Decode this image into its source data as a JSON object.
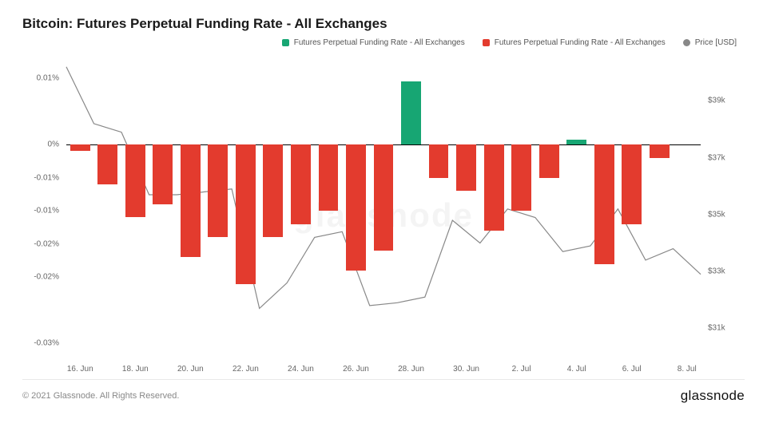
{
  "title": "Bitcoin: Futures Perpetual Funding Rate - All Exchanges",
  "legend": {
    "pos": {
      "label": "Futures Perpetual Funding Rate - All Exchanges",
      "color": "#17a673"
    },
    "neg": {
      "label": "Futures Perpetual Funding Rate - All Exchanges",
      "color": "#e33b2e"
    },
    "price": {
      "label": "Price [USD]",
      "color": "#888888"
    }
  },
  "footer": {
    "copyright": "© 2021 Glassnode. All Rights Reserved.",
    "brand": "glassnode"
  },
  "watermark": "glassnode",
  "left_axis": {
    "min": -0.032,
    "max": 0.013,
    "ticks": [
      {
        "v": 0.01,
        "label": "0.01%"
      },
      {
        "v": 0.0,
        "label": "0%"
      },
      {
        "v": -0.005,
        "label": "-0.01%"
      },
      {
        "v": -0.01,
        "label": "-0.01%"
      },
      {
        "v": -0.015,
        "label": "-0.02%"
      },
      {
        "v": -0.02,
        "label": "-0.02%"
      },
      {
        "v": -0.03,
        "label": "-0.03%"
      }
    ]
  },
  "right_axis": {
    "min": 30000,
    "max": 40500,
    "ticks": [
      {
        "v": 39000,
        "label": "$39k"
      },
      {
        "v": 37000,
        "label": "$37k"
      },
      {
        "v": 35000,
        "label": "$35k"
      },
      {
        "v": 33000,
        "label": "$33k"
      },
      {
        "v": 31000,
        "label": "$31k"
      }
    ]
  },
  "x_axis": {
    "labels": [
      {
        "i": 0,
        "label": "16. Jun"
      },
      {
        "i": 2,
        "label": "18. Jun"
      },
      {
        "i": 4,
        "label": "20. Jun"
      },
      {
        "i": 6,
        "label": "22. Jun"
      },
      {
        "i": 8,
        "label": "24. Jun"
      },
      {
        "i": 10,
        "label": "26. Jun"
      },
      {
        "i": 12,
        "label": "28. Jun"
      },
      {
        "i": 14,
        "label": "30. Jun"
      },
      {
        "i": 16,
        "label": "2. Jul"
      },
      {
        "i": 18,
        "label": "4. Jul"
      },
      {
        "i": 20,
        "label": "6. Jul"
      },
      {
        "i": 22,
        "label": "8. Jul"
      }
    ]
  },
  "bars": {
    "width_frac": 0.72,
    "values": [
      -0.001,
      -0.006,
      -0.011,
      -0.009,
      -0.017,
      -0.014,
      -0.021,
      -0.014,
      -0.012,
      -0.01,
      -0.019,
      -0.016,
      0.0095,
      -0.005,
      -0.007,
      -0.013,
      -0.01,
      -0.005,
      0.0007,
      -0.018,
      -0.012,
      -0.002,
      0.0
    ]
  },
  "price": {
    "values": [
      40200,
      38200,
      37900,
      35700,
      35700,
      35800,
      35900,
      31700,
      32600,
      34200,
      34400,
      31800,
      31900,
      32100,
      34800,
      34000,
      35200,
      34900,
      33700,
      33900,
      35200,
      33400,
      33800,
      32900
    ]
  },
  "colors": {
    "bg": "#ffffff",
    "grid": "#e8e8e8",
    "text_muted": "#888888",
    "zero_line": "#000000"
  },
  "fonts": {
    "title_pt": 17,
    "axis_pt": 10,
    "legend_pt": 10
  }
}
